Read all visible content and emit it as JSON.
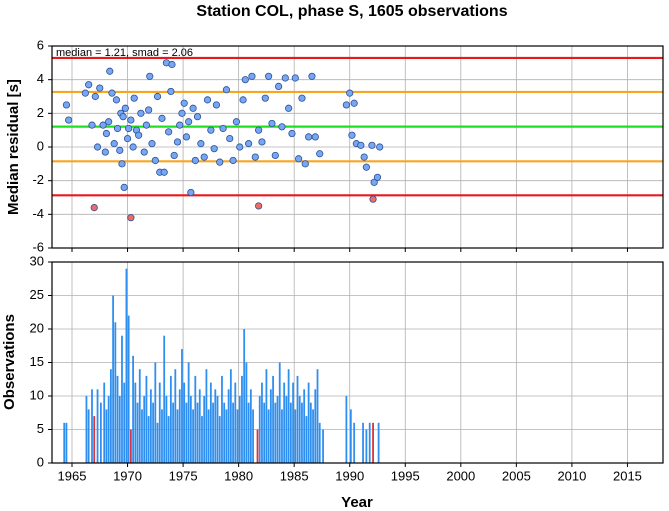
{
  "chart_data": [
    {
      "type": "scatter",
      "title": "Station COL, phase S, 1605 observations",
      "ylabel": "Median residual [s]",
      "annotation": "median = 1.21, smad = 2.06",
      "xlim": [
        1963.2,
        2018.2
      ],
      "ylim": [
        -6,
        6
      ],
      "yticks": [
        -6,
        -4,
        -2,
        0,
        2,
        4,
        6
      ],
      "grid": true,
      "hlines": [
        {
          "value": 5.29,
          "color": "#e8191d"
        },
        {
          "value": 3.27,
          "color": "#f5a623"
        },
        {
          "value": 1.21,
          "color": "#1ee01e"
        },
        {
          "value": -0.85,
          "color": "#f5a623"
        },
        {
          "value": -2.87,
          "color": "#e8191d"
        }
      ],
      "series": [
        {
          "color": "#77a7f2",
          "x": [
            1964.5,
            1964.7,
            1966.2,
            1966.5,
            1966.8,
            1967.1,
            1967.3,
            1967.5,
            1967.8,
            1968,
            1968.1,
            1968.3,
            1968.4,
            1968.6,
            1968.8,
            1969,
            1969.1,
            1969.3,
            1969.4,
            1969.5,
            1969.6,
            1969.7,
            1969.8,
            1970,
            1970.1,
            1970.3,
            1970.5,
            1970.6,
            1970.8,
            1971,
            1971.2,
            1971.5,
            1971.7,
            1971.9,
            1972,
            1972.2,
            1972.5,
            1972.7,
            1972.9,
            1973.1,
            1973.3,
            1973.5,
            1973.7,
            1973.9,
            1974,
            1974.2,
            1974.5,
            1974.7,
            1974.9,
            1975.1,
            1975.3,
            1975.5,
            1975.7,
            1975.9,
            1976.1,
            1976.3,
            1976.6,
            1976.9,
            1977.2,
            1977.5,
            1977.8,
            1978,
            1978.3,
            1978.6,
            1978.9,
            1979.2,
            1979.5,
            1979.8,
            1980.1,
            1980.4,
            1980.6,
            1980.9,
            1981.2,
            1981.5,
            1981.8,
            1982.1,
            1982.4,
            1982.7,
            1983,
            1983.3,
            1983.6,
            1983.9,
            1984.2,
            1984.5,
            1984.8,
            1985.1,
            1985.4,
            1985.7,
            1986,
            1986.3,
            1986.6,
            1986.9,
            1987.3,
            1989.7,
            1990,
            1990.2,
            1990.4,
            1990.6,
            1991,
            1991.3,
            1991.5,
            1992,
            1992.2,
            1992.5,
            1992.7
          ],
          "values": [
            2.5,
            1.6,
            3.2,
            3.7,
            1.3,
            3.0,
            0.0,
            3.5,
            1.3,
            -0.3,
            0.8,
            1.5,
            4.5,
            3.2,
            0.2,
            2.8,
            1.1,
            -0.2,
            2.0,
            -1.0,
            1.8,
            -2.4,
            2.3,
            0.5,
            1.1,
            1.6,
            0.0,
            2.9,
            1.0,
            0.7,
            2.0,
            -0.3,
            1.3,
            2.2,
            4.2,
            0.2,
            -0.8,
            3.0,
            -1.5,
            1.7,
            -1.5,
            5.0,
            0.9,
            3.3,
            4.9,
            -0.5,
            0.3,
            1.3,
            2.0,
            2.6,
            0.6,
            1.5,
            -2.7,
            2.3,
            -0.8,
            1.8,
            0.2,
            -0.6,
            2.8,
            1.0,
            -0.1,
            2.5,
            -0.9,
            1.1,
            3.4,
            0.5,
            -0.8,
            1.5,
            0.0,
            2.8,
            4.0,
            0.2,
            4.2,
            -0.6,
            1.0,
            0.3,
            2.9,
            4.2,
            1.4,
            -0.5,
            3.6,
            1.2,
            4.1,
            2.3,
            0.8,
            4.1,
            -0.7,
            2.9,
            -1.0,
            0.6,
            4.2,
            0.6,
            -0.4,
            2.5,
            3.2,
            0.7,
            2.6,
            0.2,
            0.1,
            -0.6,
            -1.2,
            0.1,
            -2.1,
            -1.8,
            0.0
          ]
        },
        {
          "color": "#f26b62",
          "x": [
            1967,
            1970.3,
            1981.8,
            1992.1
          ],
          "values": [
            -3.6,
            -4.2,
            -3.5,
            -3.1
          ]
        }
      ]
    },
    {
      "type": "bar",
      "xlabel": "Year",
      "ylabel": "Observations",
      "xlim": [
        1963.2,
        2018.2
      ],
      "ylim": [
        0,
        30
      ],
      "xticks": [
        1965,
        1970,
        1975,
        1980,
        1985,
        1990,
        1995,
        2000,
        2005,
        2010,
        2015
      ],
      "yticks": [
        0,
        5,
        10,
        15,
        20,
        25,
        30
      ],
      "grid": true,
      "series": [
        {
          "color": "#2f8ff0",
          "x": [
            1964.3,
            1964.5,
            1966.3,
            1966.5,
            1966.8,
            1967.3,
            1967.6,
            1967.9,
            1968.1,
            1968.3,
            1968.5,
            1968.7,
            1968.9,
            1969.1,
            1969.3,
            1969.5,
            1969.7,
            1969.9,
            1970.1,
            1970.5,
            1970.7,
            1970.9,
            1971.1,
            1971.3,
            1971.5,
            1971.7,
            1971.9,
            1972.1,
            1972.3,
            1972.5,
            1972.7,
            1972.9,
            1973.1,
            1973.3,
            1973.5,
            1973.7,
            1973.9,
            1974.1,
            1974.3,
            1974.5,
            1974.7,
            1974.9,
            1975.1,
            1975.3,
            1975.5,
            1975.7,
            1975.9,
            1976.1,
            1976.3,
            1976.5,
            1976.7,
            1976.9,
            1977.1,
            1977.3,
            1977.5,
            1977.7,
            1977.9,
            1978.1,
            1978.3,
            1978.5,
            1978.7,
            1978.9,
            1979.1,
            1979.3,
            1979.5,
            1979.7,
            1979.9,
            1980.1,
            1980.3,
            1980.5,
            1980.7,
            1980.9,
            1981.1,
            1981.3,
            1981.9,
            1982.1,
            1982.3,
            1982.5,
            1982.7,
            1982.9,
            1983.1,
            1983.3,
            1983.5,
            1983.7,
            1983.9,
            1984.1,
            1984.3,
            1984.5,
            1984.7,
            1984.9,
            1985.1,
            1985.3,
            1985.5,
            1985.7,
            1985.9,
            1986.1,
            1986.3,
            1986.5,
            1986.7,
            1986.9,
            1987.1,
            1987.3,
            1987.6,
            1989.7,
            1990.1,
            1990.4,
            1991.2,
            1991.5,
            1991.8,
            1992.6
          ],
          "values": [
            6,
            6,
            10,
            8,
            11,
            11,
            9,
            12,
            8,
            10,
            14,
            25,
            21,
            13,
            10,
            19,
            12,
            29,
            22,
            16,
            12,
            9,
            14,
            8,
            10,
            13,
            7,
            11,
            9,
            15,
            6,
            12,
            8,
            19,
            10,
            7,
            13,
            9,
            14,
            8,
            11,
            17,
            12,
            9,
            15,
            10,
            8,
            13,
            9,
            11,
            7,
            10,
            14,
            8,
            12,
            9,
            11,
            10,
            7,
            13,
            9,
            8,
            11,
            14,
            9,
            12,
            8,
            10,
            13,
            20,
            15,
            9,
            11,
            8,
            10,
            12,
            9,
            14,
            8,
            11,
            13,
            9,
            10,
            15,
            8,
            12,
            10,
            14,
            9,
            12,
            8,
            13,
            10,
            9,
            11,
            7,
            12,
            9,
            8,
            11,
            14,
            6,
            5,
            10,
            8,
            6,
            6,
            5,
            6,
            6
          ]
        },
        {
          "color": "#d9343b",
          "x": [
            1967.0,
            1970.3,
            1981.7,
            1992.1
          ],
          "values": [
            7,
            5,
            5,
            6
          ]
        }
      ]
    }
  ]
}
